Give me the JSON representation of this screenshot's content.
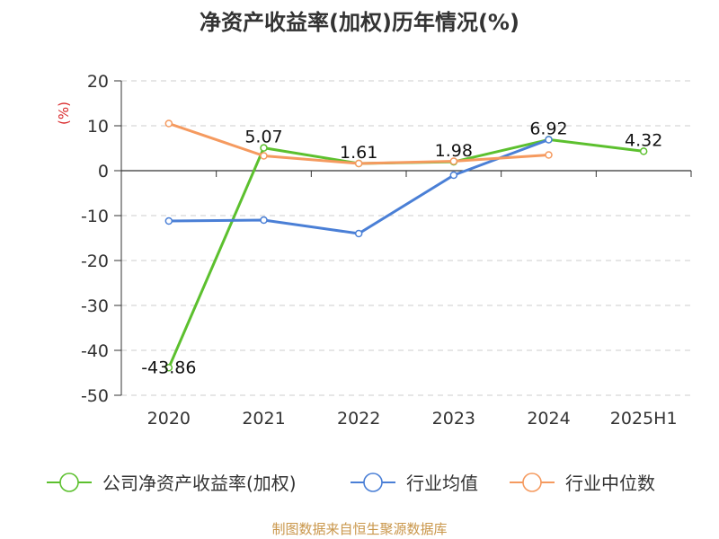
{
  "chart_data": {
    "type": "line",
    "title": "净资产收益率(加权)历年情况(%)",
    "ylabel": "(%)",
    "categories": [
      "2020",
      "2021",
      "2022",
      "2023",
      "2024",
      "2025H1"
    ],
    "ylim": [
      -50,
      20
    ],
    "yticks": [
      20,
      10,
      0,
      -10,
      -20,
      -30,
      -40,
      -50
    ],
    "grid": true,
    "legend_position": "bottom",
    "series": [
      {
        "name": "公司净资产收益率(加权)",
        "color": "#5cc02e",
        "values": [
          -43.86,
          5.07,
          1.61,
          1.98,
          6.92,
          4.32
        ],
        "labels": [
          "-43.86",
          "5.07",
          "1.61",
          "1.98",
          "6.92",
          "4.32"
        ]
      },
      {
        "name": "行业均值",
        "color": "#4a7fd6",
        "values": [
          -11.2,
          -11.0,
          -14.0,
          -1.0,
          6.9,
          null
        ]
      },
      {
        "name": "行业中位数",
        "color": "#f59a5f",
        "values": [
          10.5,
          3.3,
          1.6,
          2.1,
          3.5,
          null
        ]
      }
    ]
  },
  "source": "制图数据来自恒生聚源数据库",
  "colors": {
    "axis": "#333333",
    "grid": "#cccccc",
    "ylabel": "#d9292b",
    "source": "#c9964a"
  }
}
